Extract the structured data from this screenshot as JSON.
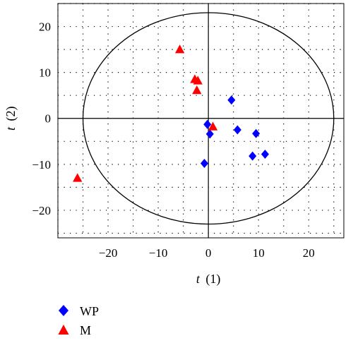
{
  "chart_data": {
    "type": "scatter",
    "xlabel_var": "t",
    "xlabel_sub": "(1)",
    "ylabel_var": "t",
    "ylabel_sub": "(2)",
    "xlim": [
      -30,
      27
    ],
    "ylim": [
      -26,
      25
    ],
    "x_ticks": [
      -20,
      -10,
      0,
      10,
      20
    ],
    "x_tick_labels": [
      "−20",
      "−10",
      "0",
      "10",
      "20"
    ],
    "y_ticks": [
      20,
      10,
      0,
      -10,
      -20
    ],
    "y_tick_labels": [
      "20",
      "10",
      "0",
      "−10",
      "−20"
    ],
    "grid": "dotted",
    "legend_position": "bottom-left",
    "ellipse": {
      "cx": 0,
      "cy": 0,
      "rx": 25,
      "ry": 23
    },
    "series": [
      {
        "name": "WP",
        "marker": "diamond",
        "color": "#0000ff",
        "points": [
          {
            "x": 4.6,
            "y": 4.0
          },
          {
            "x": 5.8,
            "y": -2.5
          },
          {
            "x": 9.5,
            "y": -3.3
          },
          {
            "x": 11.3,
            "y": -7.8
          },
          {
            "x": 8.8,
            "y": -8.2
          },
          {
            "x": -0.2,
            "y": -1.3
          },
          {
            "x": 0.3,
            "y": -3.4
          },
          {
            "x": -0.8,
            "y": -9.8
          }
        ]
      },
      {
        "name": "M",
        "marker": "triangle",
        "color": "#ff0000",
        "points": [
          {
            "x": -5.7,
            "y": 15.0
          },
          {
            "x": -2.7,
            "y": 8.5
          },
          {
            "x": -2.1,
            "y": 8.2
          },
          {
            "x": -2.3,
            "y": 6.1
          },
          {
            "x": 0.9,
            "y": -1.8
          },
          {
            "x": -26.1,
            "y": -13.0
          }
        ]
      }
    ]
  }
}
